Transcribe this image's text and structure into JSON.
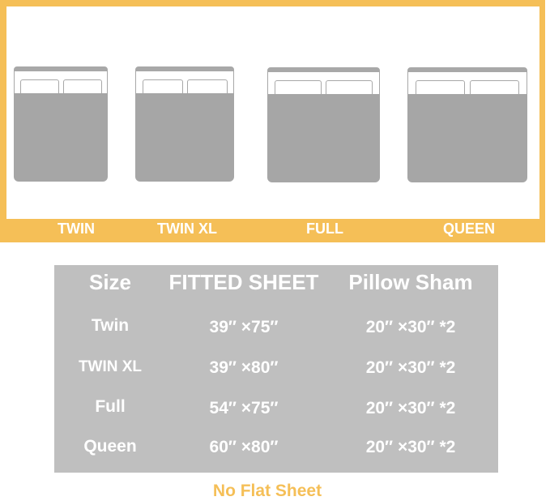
{
  "beds": [
    {
      "label": "TWIN"
    },
    {
      "label": "TWIN XL"
    },
    {
      "label": "FULL"
    },
    {
      "label": "QUEEN"
    }
  ],
  "table": {
    "headers": [
      "Size",
      "FITTED SHEET",
      "Pillow Sham"
    ],
    "rows": [
      [
        "Twin",
        "39″ ×75″",
        "20″ ×30″ *2"
      ],
      [
        "TWIN XL",
        "39″ ×80″",
        "20″ ×30″ *2"
      ],
      [
        "Full",
        "54″ ×75″",
        "20″ ×30″ *2"
      ],
      [
        "Queen",
        "60″ ×80″",
        "20″ ×30″ *2"
      ]
    ]
  },
  "note": "No Flat Sheet",
  "colors": {
    "accent": "#f5bf57",
    "table_bg": "#bfbfbf",
    "bed_grey": "#a6a6a6"
  }
}
